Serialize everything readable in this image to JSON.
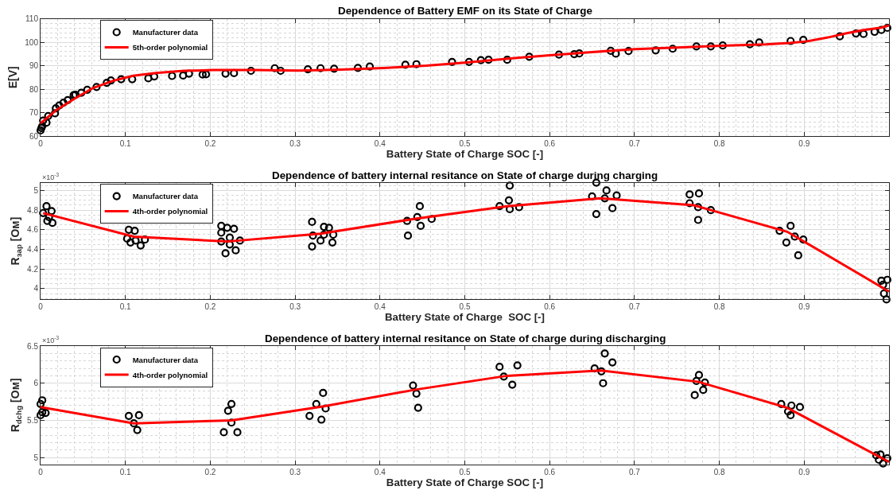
{
  "chart_data": [
    {
      "type": "scatter",
      "title": "Dependence of Battery EMF on its State of Charge",
      "xlabel": "Battery State of Charge SOC [-]",
      "ylabel": "E[V]",
      "xlim": [
        0,
        1
      ],
      "xticks": [
        0,
        0.1,
        0.2,
        0.3,
        0.4,
        0.5,
        0.6,
        0.7,
        0.8,
        0.9
      ],
      "ylim": [
        60,
        110
      ],
      "yticks": [
        60,
        70,
        80,
        90,
        100,
        110
      ],
      "grid": true,
      "legend": "top left",
      "series": [
        {
          "name": "Manufacturer data",
          "marker": "circle",
          "color": "#000000",
          "x": [
            0,
            0.001,
            0.002,
            0.003,
            0.007,
            0.009,
            0.017,
            0.018,
            0.022,
            0.027,
            0.032,
            0.039,
            0.041,
            0.048,
            0.055,
            0.066,
            0.078,
            0.083,
            0.095,
            0.108,
            0.127,
            0.134,
            0.155,
            0.168,
            0.175,
            0.191,
            0.195,
            0.218,
            0.228,
            0.248,
            0.276,
            0.283,
            0.315,
            0.33,
            0.346,
            0.374,
            0.388,
            0.43,
            0.443,
            0.485,
            0.505,
            0.519,
            0.528,
            0.55,
            0.576,
            0.611,
            0.629,
            0.635,
            0.672,
            0.678,
            0.693,
            0.725,
            0.745,
            0.773,
            0.79,
            0.804,
            0.836,
            0.847,
            0.884,
            0.899,
            0.942,
            0.961,
            0.97,
            0.983,
            0.991,
            0.998
          ],
          "values": [
            62.4,
            63.4,
            64.2,
            66.6,
            65.7,
            68.5,
            69.7,
            71.8,
            73.0,
            74.2,
            75.3,
            77.4,
            77.6,
            78.4,
            79.7,
            80.9,
            82.7,
            83.7,
            84.2,
            84.2,
            84.6,
            85.4,
            85.6,
            85.8,
            86.6,
            86.2,
            86.3,
            86.6,
            86.8,
            87.8,
            88.9,
            87.8,
            88.4,
            88.9,
            88.7,
            89.0,
            89.6,
            90.4,
            90.6,
            91.6,
            91.6,
            92.3,
            92.5,
            92.5,
            93.8,
            94.7,
            94.9,
            95.2,
            96.3,
            95.1,
            96.2,
            96.5,
            97.2,
            98.2,
            98.2,
            98.6,
            99.1,
            99.9,
            100.5,
            101.0,
            102.5,
            103.7,
            103.5,
            104.4,
            105.2,
            106.1
          ]
        },
        {
          "name": "5th-order polynomial",
          "type": "line",
          "color": "#ff0000",
          "x": [
            0,
            0.018,
            0.039,
            0.062,
            0.086,
            0.109,
            0.136,
            0.169,
            0.203,
            0.253,
            0.304,
            0.354,
            0.404,
            0.455,
            0.5,
            0.559,
            0.6,
            0.65,
            0.701,
            0.75,
            0.802,
            0.855,
            0.883,
            0.902,
            0.928,
            0.949,
            0.97,
            0.991,
            1.0
          ],
          "values": [
            65.4,
            70.9,
            75.7,
            80.5,
            83.6,
            85.7,
            86.9,
            87.8,
            88.1,
            88.1,
            87.9,
            88.3,
            89.0,
            90.0,
            91.3,
            93.2,
            94.4,
            95.8,
            97.0,
            97.7,
            98.5,
            99.1,
            99.7,
            100.3,
            102.0,
            103.7,
            105.2,
            106.2,
            107.1
          ]
        }
      ]
    },
    {
      "type": "scatter",
      "title": "Dependence of battery internal resitance on State of charge during charging",
      "xlabel": "Battery State of Charge  SOC [-]",
      "ylabel": "R$_{зар}$ [Ом]",
      "annotations": [
        "×10$^{-3}$"
      ],
      "xlim": [
        0,
        1
      ],
      "xticks": [
        0,
        0.1,
        0.2,
        0.3,
        0.4,
        0.5,
        0.6,
        0.7,
        0.8,
        0.9
      ],
      "ylim": [
        3.89,
        5.08
      ],
      "yticks": [
        4,
        4.2,
        4.4,
        4.6,
        4.8,
        5
      ],
      "grid": true,
      "legend": "top left",
      "series": [
        {
          "name": "Manufacturer data",
          "marker": "circle",
          "color": "#000000",
          "x": [
            0.003,
            0.007,
            0.008,
            0.01,
            0.013,
            0.014,
            0.102,
            0.104,
            0.106,
            0.111,
            0.112,
            0.118,
            0.123,
            0.213,
            0.213,
            0.213,
            0.218,
            0.22,
            0.223,
            0.223,
            0.228,
            0.23,
            0.235,
            0.32,
            0.32,
            0.321,
            0.33,
            0.334,
            0.334,
            0.34,
            0.344,
            0.345,
            0.432,
            0.433,
            0.444,
            0.447,
            0.448,
            0.461,
            0.541,
            0.552,
            0.553,
            0.553,
            0.564,
            0.65,
            0.655,
            0.655,
            0.665,
            0.667,
            0.674,
            0.679,
            0.765,
            0.765,
            0.775,
            0.775,
            0.776,
            0.79,
            0.871,
            0.879,
            0.884,
            0.889,
            0.893,
            0.899,
            0.991,
            0.993,
            0.994,
            0.997,
            0.998
          ],
          "values": [
            4.77,
            4.84,
            4.69,
            4.73,
            4.79,
            4.67,
            4.51,
            4.6,
            4.47,
            4.59,
            4.49,
            4.44,
            4.5,
            4.64,
            4.57,
            4.48,
            4.36,
            4.62,
            4.52,
            4.45,
            4.61,
            4.39,
            4.49,
            4.68,
            4.43,
            4.54,
            4.49,
            4.63,
            4.55,
            4.62,
            4.47,
            4.55,
            4.69,
            4.54,
            4.73,
            4.84,
            4.64,
            4.71,
            4.84,
            4.9,
            5.05,
            4.81,
            4.83,
            4.94,
            5.08,
            4.76,
            4.92,
            5.0,
            4.82,
            4.95,
            4.96,
            4.87,
            4.83,
            4.7,
            4.97,
            4.8,
            4.59,
            4.47,
            4.64,
            4.53,
            4.34,
            4.5,
            4.08,
            4.04,
            3.95,
            3.89,
            4.09
          ]
        },
        {
          "name": "4th-order polynomial",
          "type": "line",
          "color": "#ff0000",
          "x": [
            0.003,
            0.11,
            0.22,
            0.33,
            0.44,
            0.55,
            0.66,
            0.77,
            0.79,
            0.88,
            1.0
          ],
          "values": [
            4.77,
            4.53,
            4.48,
            4.56,
            4.71,
            4.84,
            4.92,
            4.85,
            4.8,
            4.58,
            3.97
          ]
        }
      ]
    },
    {
      "type": "scatter",
      "title": "Dependence of battery internal resitance on State of charge during discharging",
      "xlabel": "Battery State of Charge SOC [-]",
      "ylabel": "R$_{dchg}$ [Ом]",
      "annotations": [
        "×10$^{-3}$"
      ],
      "xlim": [
        0,
        1
      ],
      "xticks": [
        0,
        0.1,
        0.2,
        0.3,
        0.4,
        0.5,
        0.6,
        0.7,
        0.8,
        0.9
      ],
      "ylim": [
        4.91,
        6.5
      ],
      "yticks": [
        5,
        5.5,
        6,
        6.5
      ],
      "grid": true,
      "legend": "top left",
      "series": [
        {
          "name": "Manufacturer data",
          "marker": "circle",
          "color": "#000000",
          "x": [
            0.0,
            0.002,
            0.0,
            0.002,
            0.006,
            0.104,
            0.11,
            0.114,
            0.116,
            0.216,
            0.221,
            0.225,
            0.225,
            0.232,
            0.317,
            0.325,
            0.331,
            0.333,
            0.336,
            0.439,
            0.443,
            0.445,
            0.541,
            0.546,
            0.556,
            0.562,
            0.653,
            0.661,
            0.663,
            0.665,
            0.674,
            0.771,
            0.773,
            0.776,
            0.781,
            0.783,
            0.873,
            0.881,
            0.884,
            0.885,
            0.895,
            0.985,
            0.988,
            0.99,
            0.993,
            0.998
          ],
          "values": [
            5.72,
            5.77,
            5.57,
            5.61,
            5.6,
            5.56,
            5.46,
            5.37,
            5.57,
            5.34,
            5.63,
            5.72,
            5.47,
            5.34,
            5.56,
            5.72,
            5.51,
            5.87,
            5.66,
            5.97,
            5.86,
            5.67,
            6.22,
            6.09,
            5.98,
            6.24,
            6.2,
            6.16,
            6.0,
            6.4,
            6.28,
            5.84,
            6.03,
            6.11,
            5.91,
            6.01,
            5.72,
            5.62,
            5.57,
            5.7,
            5.68,
            5.03,
            4.97,
            5.04,
            4.92,
            4.99
          ]
        },
        {
          "name": "4th-order polynomial",
          "type": "line",
          "color": "#ff0000",
          "x": [
            0,
            0.11,
            0.225,
            0.334,
            0.44,
            0.55,
            0.66,
            0.775,
            0.88,
            1.0
          ],
          "values": [
            5.68,
            5.46,
            5.5,
            5.69,
            5.91,
            6.1,
            6.17,
            6.02,
            5.67,
            4.94
          ]
        }
      ]
    }
  ]
}
